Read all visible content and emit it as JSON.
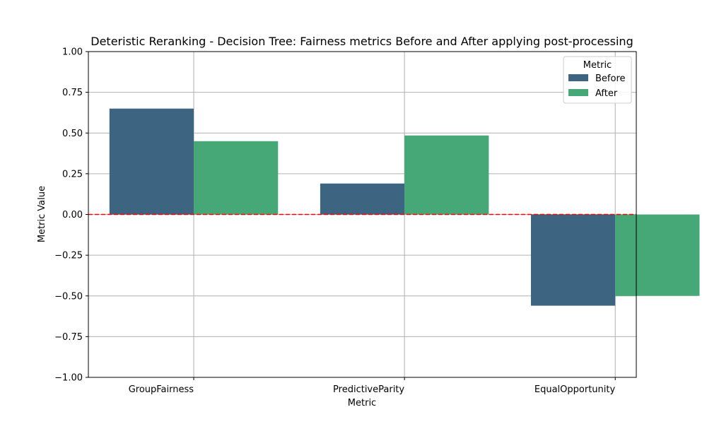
{
  "chart_data": {
    "type": "bar",
    "title": "Deteristic Reranking - Decision Tree: Fairness metrics Before and After applying post-processing",
    "xlabel": "Metric",
    "ylabel": "Metric Value",
    "categories": [
      "GroupFairness",
      "PredictiveParity",
      "EqualOpportunity"
    ],
    "series": [
      {
        "name": "Before",
        "values": [
          0.65,
          0.19,
          -0.56
        ],
        "color": "#3d6581"
      },
      {
        "name": "After",
        "values": [
          0.45,
          0.485,
          -0.5
        ],
        "color": "#45a876"
      }
    ],
    "ylim": [
      -1.0,
      1.0
    ],
    "yticks": [
      "−1.00",
      "−0.75",
      "−0.50",
      "−0.25",
      "0.00",
      "0.25",
      "0.50",
      "0.75",
      "1.00"
    ],
    "ytick_values": [
      -1.0,
      -0.75,
      -0.5,
      -0.25,
      0.0,
      0.25,
      0.5,
      0.75,
      1.0
    ],
    "reference_line": {
      "y": 0.0,
      "color": "#ff0000",
      "style": "dashed"
    },
    "grid": true,
    "legend": {
      "title": "Metric",
      "position": "top-right"
    }
  }
}
